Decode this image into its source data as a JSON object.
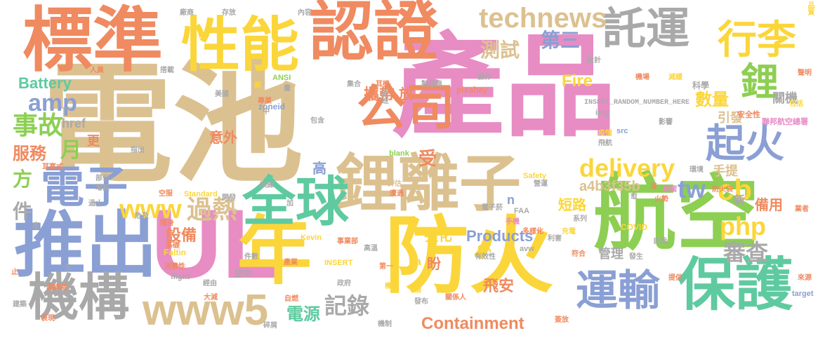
{
  "cloud": {
    "words": [
      {
        "text": "電池",
        "color": "#dcc190"
      },
      {
        "text": "產品",
        "color": "#e88cc4"
      },
      {
        "text": "認證",
        "color": "#f08a60"
      },
      {
        "text": "航空",
        "color": "#8dcf52"
      },
      {
        "text": "防火",
        "color": "#fbd63a"
      },
      {
        "text": "UL",
        "color": "#e88cc4"
      },
      {
        "text": "標準",
        "color": "#f08a60"
      },
      {
        "text": "性能",
        "color": "#fbd63a"
      },
      {
        "text": "鋰離子",
        "color": "#dcc190"
      },
      {
        "text": "推出",
        "color": "#8a9fd4"
      },
      {
        "text": "年",
        "color": "#fbd63a"
      },
      {
        "text": "全球",
        "color": "#5fcaa0"
      },
      {
        "text": "保護",
        "color": "#5fcaa0"
      },
      {
        "text": "公司",
        "color": "#f08a60"
      },
      {
        "text": "電子",
        "color": "#8a9fd4"
      },
      {
        "text": "機構",
        "color": "#a9a9a9"
      },
      {
        "text": "www5",
        "color": "#dcc190"
      },
      {
        "text": "運輸",
        "color": "#8a9fd4"
      },
      {
        "text": "託運",
        "color": "#a9a9a9"
      },
      {
        "text": "行李",
        "color": "#fbd63a"
      },
      {
        "text": "起火",
        "color": "#8a9fd4"
      },
      {
        "text": "technews",
        "color": "#dcc190"
      },
      {
        "text": "鋰",
        "color": "#8dcf52"
      },
      {
        "text": "delivery",
        "color": "#fbd63a"
      },
      {
        "text": "www",
        "color": "#fbd63a"
      },
      {
        "text": "過熱",
        "color": "#dcc190"
      },
      {
        "text": "amp",
        "color": "#8a9fd4"
      },
      {
        "text": "事故",
        "color": "#8dcf52"
      },
      {
        "text": "服務",
        "color": "#f08a60"
      },
      {
        "text": "月",
        "color": "#8dcf52"
      },
      {
        "text": "Battery",
        "color": "#5fcaa0"
      },
      {
        "text": "cb",
        "color": "#fbd63a"
      },
      {
        "text": "php",
        "color": "#fbd63a"
      },
      {
        "text": "tw",
        "color": "#8a9fd4"
      },
      {
        "text": "審查",
        "color": "#a9a9a9"
      },
      {
        "text": "記錄",
        "color": "#a9a9a9"
      },
      {
        "text": "Containment",
        "color": "#f08a60"
      },
      {
        "text": "Products",
        "color": "#8a9fd4"
      },
      {
        "text": "第三",
        "color": "#8a9fd4"
      },
      {
        "text": "測試",
        "color": "#dcc190"
      },
      {
        "text": "Fire",
        "color": "#fbd63a"
      },
      {
        "text": "數量",
        "color": "#fbd63a"
      },
      {
        "text": "a4b3f35b",
        "color": "#dcc190"
      },
      {
        "text": "電源",
        "color": "#5fcaa0"
      },
      {
        "text": "設備",
        "color": "#f08a60"
      },
      {
        "text": "攜帶",
        "color": "#f08a60"
      },
      {
        "text": "意外",
        "color": "#f08a60"
      },
      {
        "text": "強化",
        "color": "#fbd63a"
      },
      {
        "text": "飛安",
        "color": "#f08a60"
      },
      {
        "text": "管理",
        "color": "#a9a9a9"
      },
      {
        "text": "短路",
        "color": "#fbd63a"
      },
      {
        "text": "備用",
        "color": "#f08a60"
      },
      {
        "text": "手提",
        "color": "#dcc190"
      },
      {
        "text": "引發",
        "color": "#dcc190"
      },
      {
        "text": "關機",
        "color": "#a9a9a9"
      },
      {
        "text": "件",
        "color": "#a9a9a9"
      },
      {
        "text": "方",
        "color": "#8dcf52"
      },
      {
        "text": "受",
        "color": "#f08a60"
      },
      {
        "text": "高",
        "color": "#8a9fd4"
      },
      {
        "text": "更",
        "color": "#f08a60"
      },
      {
        "text": "href",
        "color": "#a9a9a9"
      },
      {
        "text": "放",
        "color": "#f08a60"
      },
      {
        "text": "盼",
        "color": "#f08a60"
      },
      {
        "text": "ck",
        "color": "#fbd63a"
      },
      {
        "text": "n",
        "color": "#8a9fd4"
      },
      {
        "text": "a",
        "color": "#fbd63a"
      },
      {
        "text": "新",
        "color": "#a9a9a9"
      },
      {
        "text": "INSERT_RANDOM_NUMBER_HERE",
        "color": "#a9a9a9"
      },
      {
        "text": "zoneid",
        "color": "#8a9fd4"
      },
      {
        "text": "ANSI",
        "color": "#8dcf52"
      },
      {
        "text": "pixabay",
        "color": "#f08a60"
      },
      {
        "text": "Safety",
        "color": "#fbd63a"
      },
      {
        "text": "Standard",
        "color": "#fbd63a"
      },
      {
        "text": "FAA",
        "color": "#a9a9a9"
      },
      {
        "text": "COVID",
        "color": "#fbd63a"
      },
      {
        "text": "Faltin",
        "color": "#fbd63a"
      },
      {
        "text": "Kevin",
        "color": "#fbd63a"
      },
      {
        "text": "INSERT",
        "color": "#fbd63a"
      },
      {
        "text": "flight",
        "color": "#a9a9a9"
      },
      {
        "text": "avw",
        "color": "#a9a9a9"
      },
      {
        "text": "img",
        "color": "#a9a9a9"
      },
      {
        "text": "src",
        "color": "#8a9fd4"
      },
      {
        "text": "_blank",
        "color": "#8dcf52"
      },
      {
        "text": "target",
        "color": "#8a9fd4"
      },
      {
        "text": "科學",
        "color": "#a9a9a9"
      },
      {
        "text": "安全性",
        "color": "#f08a60"
      },
      {
        "text": "聯邦航空總署",
        "color": "#e88cc4"
      },
      {
        "text": "製造商",
        "color": "#a9a9a9"
      },
      {
        "text": "集合",
        "color": "#a9a9a9"
      },
      {
        "text": "耳機",
        "color": "#f08a60"
      },
      {
        "text": "航班",
        "color": "#a9a9a9"
      },
      {
        "text": "專業",
        "color": "#f08a60"
      },
      {
        "text": "美國",
        "color": "#a9a9a9"
      },
      {
        "text": "包含",
        "color": "#a9a9a9"
      },
      {
        "text": "操作",
        "color": "#a9a9a9"
      },
      {
        "text": "機場",
        "color": "#f08a60"
      },
      {
        "text": "減緩",
        "color": "#fbd63a"
      },
      {
        "text": "疫情",
        "color": "#fbd63a"
      },
      {
        "text": "影響",
        "color": "#a9a9a9"
      },
      {
        "text": "飛航",
        "color": "#a9a9a9"
      },
      {
        "text": "存放",
        "color": "#a9a9a9"
      },
      {
        "text": "廠商",
        "color": "#a9a9a9"
      },
      {
        "text": "內容",
        "color": "#a9a9a9"
      },
      {
        "text": "品質",
        "color": "#fbd63a"
      },
      {
        "text": "設計",
        "color": "#a9a9a9"
      },
      {
        "text": "人員",
        "color": "#f08a60"
      },
      {
        "text": "搭載",
        "color": "#a9a9a9"
      },
      {
        "text": "聲明",
        "color": "#f08a60"
      },
      {
        "text": "包括",
        "color": "#fbd63a"
      },
      {
        "text": "環境",
        "color": "#a9a9a9"
      },
      {
        "text": "相關",
        "color": "#e88cc4"
      },
      {
        "text": "防火袋",
        "color": "#f08a60"
      },
      {
        "text": "火勢",
        "color": "#f08a60"
      },
      {
        "text": "首",
        "color": "#f08a60"
      },
      {
        "text": "愈",
        "color": "#a9a9a9"
      },
      {
        "text": "業者",
        "color": "#f08a60"
      },
      {
        "text": "充電",
        "color": "#fbd63a"
      },
      {
        "text": "利害",
        "color": "#a9a9a9"
      },
      {
        "text": "自我",
        "color": "#a9a9a9"
      },
      {
        "text": "符合",
        "color": "#f08a60"
      },
      {
        "text": "發生",
        "color": "#a9a9a9"
      },
      {
        "text": "提供",
        "color": "#f08a60"
      },
      {
        "text": "來源",
        "color": "#f08a60"
      },
      {
        "text": "系列",
        "color": "#a9a9a9"
      },
      {
        "text": "多樣化",
        "color": "#f08a60"
      },
      {
        "text": "手機",
        "color": "#e88cc4"
      },
      {
        "text": "電子菸",
        "color": "#a9a9a9"
      },
      {
        "text": "評估",
        "color": "#dcc190"
      },
      {
        "text": "遭遇",
        "color": "#f08a60"
      },
      {
        "text": "營運",
        "color": "#a9a9a9"
      },
      {
        "text": "有效性",
        "color": "#a9a9a9"
      },
      {
        "text": "第一",
        "color": "#f08a60"
      },
      {
        "text": "須",
        "color": "#fbd63a"
      },
      {
        "text": "發布",
        "color": "#a9a9a9"
      },
      {
        "text": "關係人",
        "color": "#f08a60"
      },
      {
        "text": "機制",
        "color": "#a9a9a9"
      },
      {
        "text": "簽放",
        "color": "#f08a60"
      },
      {
        "text": "碎屑",
        "color": "#a9a9a9"
      },
      {
        "text": "經由",
        "color": "#a9a9a9"
      },
      {
        "text": "大減",
        "color": "#f08a60"
      },
      {
        "text": "政府",
        "color": "#a9a9a9"
      },
      {
        "text": "自燃",
        "color": "#f08a60"
      },
      {
        "text": "機艙",
        "color": "#fbd63a"
      },
      {
        "text": "空中",
        "color": "#a9a9a9"
      },
      {
        "text": "高溫",
        "color": "#a9a9a9"
      },
      {
        "text": "事業部",
        "color": "#f08a60"
      },
      {
        "text": "件數",
        "color": "#a9a9a9"
      },
      {
        "text": "產業",
        "color": "#f08a60"
      },
      {
        "text": "基礎",
        "color": "#f08a60"
      },
      {
        "text": "消費性",
        "color": "#f08a60"
      },
      {
        "text": "危及",
        "color": "#a9a9a9"
      },
      {
        "text": "部份",
        "color": "#a9a9a9"
      },
      {
        "text": "增設",
        "color": "#a9a9a9"
      },
      {
        "text": "過止",
        "color": "#a9a9a9"
      },
      {
        "text": "隨身",
        "color": "#f08a60"
      },
      {
        "text": "開發",
        "color": "#a9a9a9"
      },
      {
        "text": "空服",
        "color": "#f08a60"
      },
      {
        "text": "訓練",
        "color": "#a9a9a9"
      },
      {
        "text": "副總裁",
        "color": "#f08a60"
      },
      {
        "text": "建築",
        "color": "#a9a9a9"
      },
      {
        "text": "表現",
        "color": "#f08a60"
      },
      {
        "text": "耳塞式",
        "color": "#f08a60"
      },
      {
        "text": "指出",
        "color": "#a9a9a9"
      },
      {
        "text": "止",
        "color": "#f08a60"
      },
      {
        "text": "底",
        "color": "#a9a9a9"
      },
      {
        "text": "加",
        "color": "#a9a9a9"
      },
      {
        "text": "畫",
        "color": "#a9a9a9"
      },
      {
        "text": "案",
        "color": "#fbd63a"
      },
      {
        "text": "中",
        "color": "#a9a9a9"
      },
      {
        "text": "三",
        "color": "#a9a9a9"
      }
    ]
  }
}
